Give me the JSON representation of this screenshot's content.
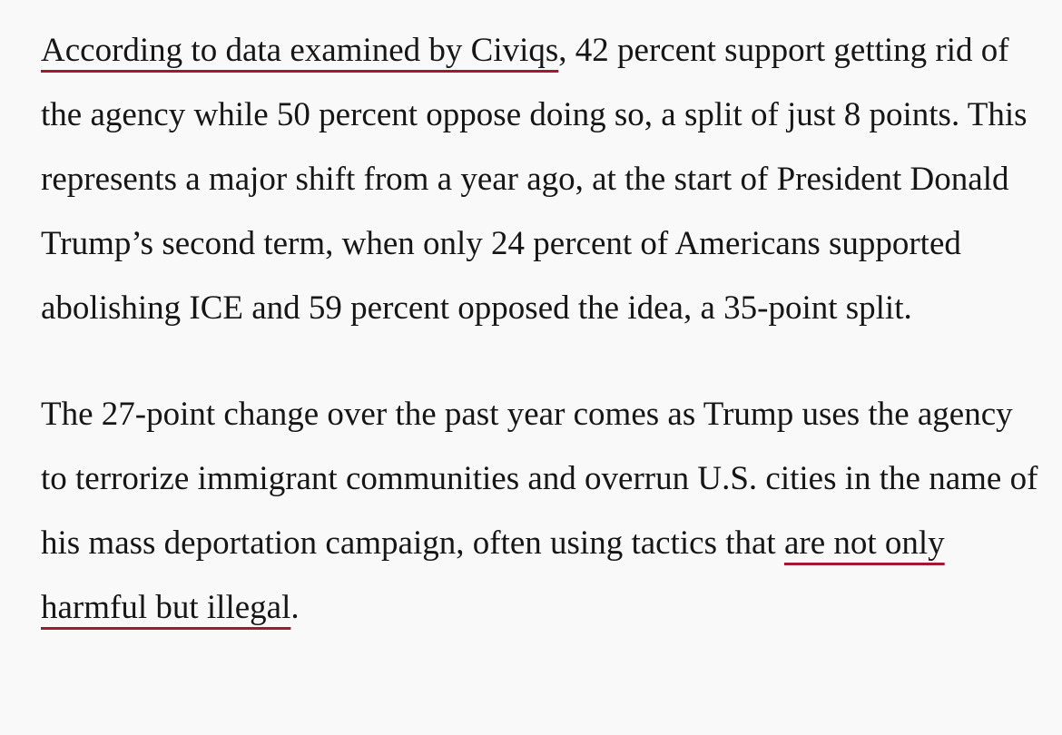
{
  "paragraphs": [
    [
      {
        "link": "According to data examined by Civiqs"
      },
      {
        "text": ", 42 percent support getting rid of the agency while 50 percent oppose doing so, a split of just 8 points. This represents a major shift from a year ago, at the start of President Donald Trump’s second term, when only 24 percent of Americans supported abolishing ICE and 59 percent opposed the idea, a 35-point split."
      }
    ],
    [
      {
        "text": "The 27-point change over the past year comes as Trump uses the agency to terrorize immigrant communities and overrun U.S. cities in the name of his mass deportation campaign, often using tactics that "
      },
      {
        "link": "are not only harmful but illegal"
      },
      {
        "text": "."
      }
    ]
  ]
}
